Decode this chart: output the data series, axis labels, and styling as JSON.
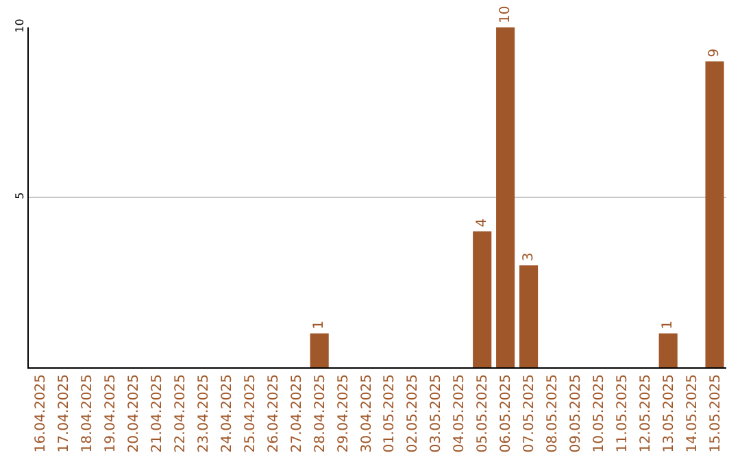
{
  "chart_data": {
    "type": "bar",
    "categories": [
      "16.04.2025",
      "17.04.2025",
      "18.04.2025",
      "19.04.2025",
      "20.04.2025",
      "21.04.2025",
      "22.04.2025",
      "23.04.2025",
      "24.04.2025",
      "25.04.2025",
      "26.04.2025",
      "27.04.2025",
      "28.04.2025",
      "29.04.2025",
      "30.04.2025",
      "01.05.2025",
      "02.05.2025",
      "03.05.2025",
      "04.05.2025",
      "05.05.2025",
      "06.05.2025",
      "07.05.2025",
      "08.05.2025",
      "09.05.2025",
      "10.05.2025",
      "11.05.2025",
      "12.05.2025",
      "13.05.2025",
      "14.05.2025",
      "15.05.2025"
    ],
    "values": [
      0,
      0,
      0,
      0,
      0,
      0,
      0,
      0,
      0,
      0,
      0,
      0,
      1,
      0,
      0,
      0,
      0,
      0,
      0,
      4,
      10,
      3,
      0,
      0,
      0,
      0,
      0,
      1,
      0,
      9
    ],
    "value_labels": [
      null,
      null,
      null,
      null,
      null,
      null,
      null,
      null,
      null,
      null,
      null,
      null,
      "1",
      null,
      null,
      null,
      null,
      null,
      null,
      "4",
      "10",
      "3",
      null,
      null,
      null,
      null,
      null,
      "1",
      null,
      "9"
    ],
    "color": "#a0582a",
    "ylim": [
      0,
      10
    ],
    "yticks": [
      5,
      10
    ],
    "grid": "y",
    "legend": false
  }
}
